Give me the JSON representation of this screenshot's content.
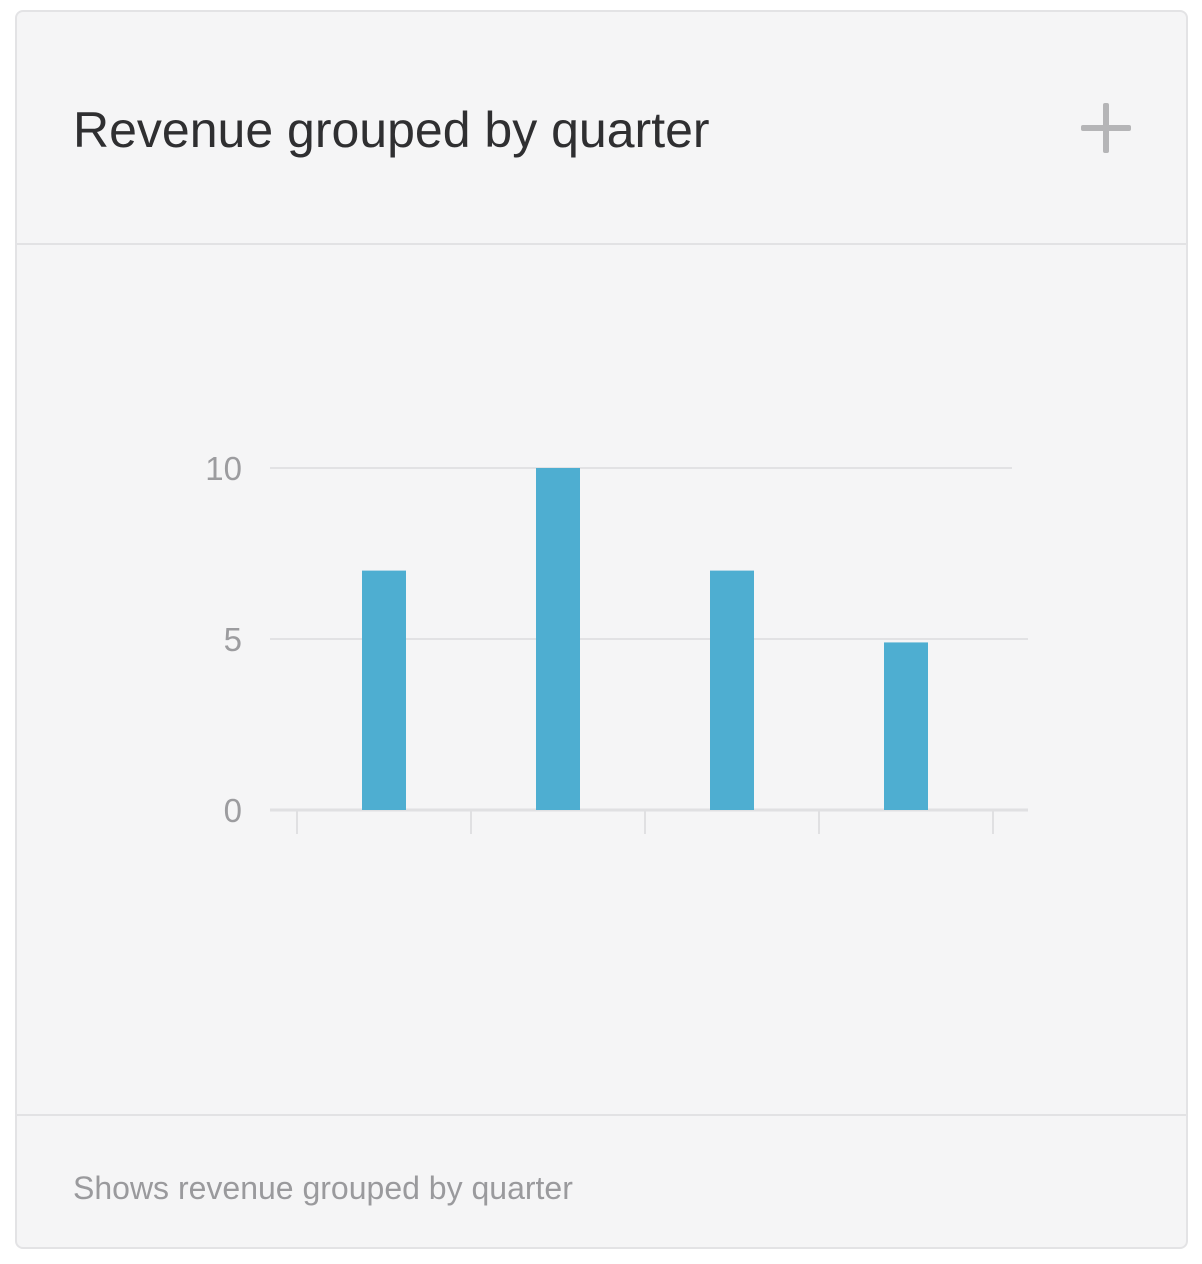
{
  "card": {
    "title": "Revenue grouped by quarter",
    "add_icon": "plus-icon",
    "description": "Shows revenue grouped by quarter"
  },
  "colors": {
    "bar": "#4eaed1",
    "gridline": "#e2e2e4",
    "axis": "#e0e0e2",
    "tick_text": "#9c9c9f"
  },
  "chart_data": {
    "type": "bar",
    "title": "",
    "xlabel": "",
    "ylabel": "",
    "categories": [
      "",
      "",
      "",
      ""
    ],
    "values": [
      7,
      10,
      7,
      4.9
    ],
    "ylim": [
      0,
      10
    ],
    "yticks": [
      "0",
      "5",
      "10"
    ],
    "grid": true,
    "legend": "none"
  }
}
